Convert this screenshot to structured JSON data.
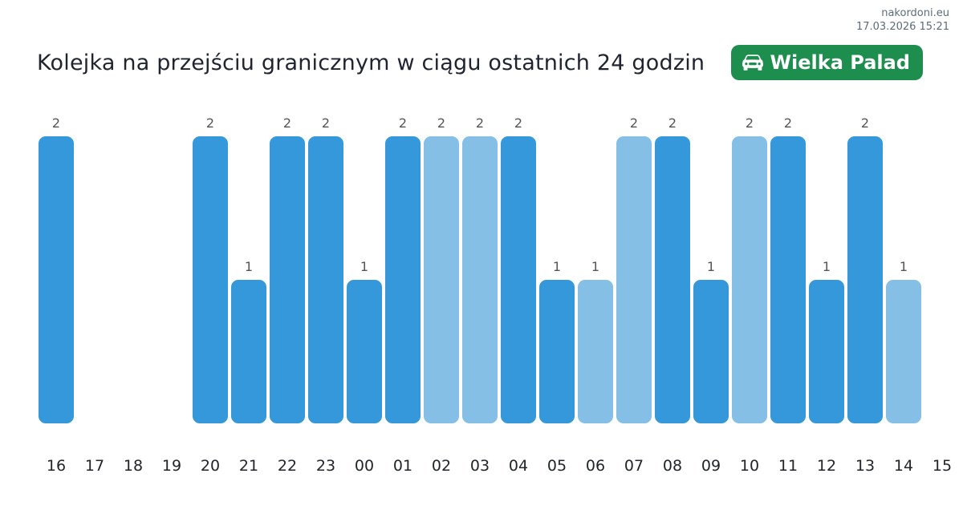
{
  "header": {
    "site": "nakordoni.eu",
    "timestamp": "17.03.2026 15:21"
  },
  "badge": {
    "label": "Wielka Palad",
    "icon": "car-front-icon",
    "background": "#1e8e4f",
    "text_color": "#ffffff"
  },
  "chart_data": {
    "type": "bar",
    "title": "Kolejka na przejściu granicznym w ciągu ostatnich 24 godzin",
    "xlabel": "",
    "ylabel": "",
    "categories": [
      "16",
      "17",
      "18",
      "19",
      "20",
      "21",
      "22",
      "23",
      "00",
      "01",
      "02",
      "03",
      "04",
      "05",
      "06",
      "07",
      "08",
      "09",
      "10",
      "11",
      "12",
      "13",
      "14",
      "15"
    ],
    "values": [
      2,
      null,
      null,
      null,
      2,
      1,
      2,
      2,
      1,
      2,
      2,
      2,
      2,
      1,
      1,
      2,
      2,
      1,
      2,
      2,
      1,
      2,
      1,
      null
    ],
    "bar_styles": [
      "dark",
      null,
      null,
      null,
      "dark",
      "dark",
      "dark",
      "dark",
      "dark",
      "dark",
      "light",
      "light",
      "dark",
      "dark",
      "light",
      "light",
      "dark",
      "dark",
      "light",
      "dark",
      "dark",
      "dark",
      "light",
      null
    ],
    "colors": {
      "dark": "#3498db",
      "light": "#85bfe5"
    },
    "value_label_color": "#555555",
    "axis_label_color": "#212529",
    "ylim": [
      0,
      2
    ],
    "grid": false,
    "legend": false,
    "value_labels_shown": true
  }
}
